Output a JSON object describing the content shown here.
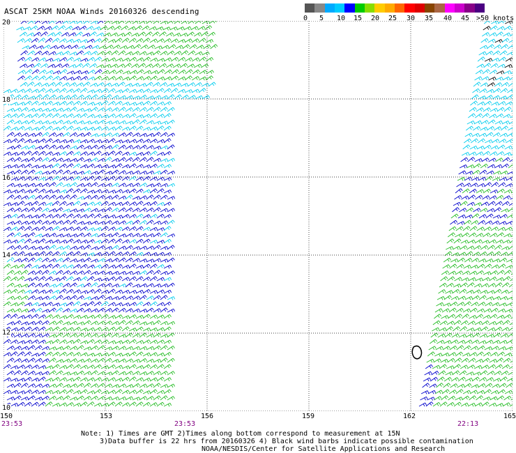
{
  "title": "ASCAT 25KM NOAA Winds 20160326 descending",
  "speed_scale": {
    "labels": [
      "0",
      "5",
      "10",
      "15",
      "20",
      "25",
      "30",
      "35",
      "40",
      "45",
      ">50 knots"
    ],
    "colors": [
      "#555555",
      "#888888",
      "#00aaff",
      "#00ccff",
      "#0000ff",
      "#00cc00",
      "#88dd00",
      "#ffcc00",
      "#ffaa00",
      "#ff6600",
      "#ff0000",
      "#dd0000",
      "#884400",
      "#aa6644",
      "#ff00ff",
      "#cc00cc",
      "#880088",
      "#4b0082"
    ]
  },
  "latitudes": [
    "20",
    "18",
    "16",
    "14",
    "12",
    "10"
  ],
  "longitudes": [
    "150",
    "153",
    "156",
    "159",
    "162",
    "165"
  ],
  "pass_times": [
    "23:53",
    "23:53",
    "22:13"
  ],
  "notes": [
    "Note: 1) Times are GMT 2)Times along bottom correspond to measurement at 15N",
    "3)Data buffer is 22 hrs from 20160326 4) Black wind barbs indicate possible contamination",
    "NOAA/NESDIS/Center for Satellite Applications and Research"
  ],
  "barb_colors": {
    "cyan": "#00ccee",
    "blue": "#0000cc",
    "green": "#22bb22",
    "black": "#000000"
  }
}
